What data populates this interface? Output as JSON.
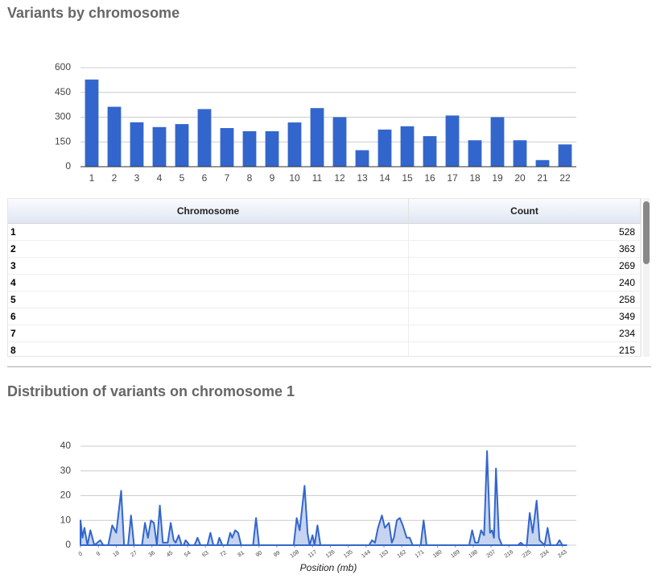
{
  "chart_data": [
    {
      "type": "bar",
      "title": "Variants by chromosome",
      "categories": [
        "1",
        "2",
        "3",
        "4",
        "5",
        "6",
        "7",
        "8",
        "9",
        "10",
        "11",
        "12",
        "13",
        "14",
        "15",
        "16",
        "17",
        "18",
        "19",
        "20",
        "21",
        "22"
      ],
      "values": [
        528,
        363,
        269,
        240,
        258,
        349,
        234,
        215,
        215,
        268,
        355,
        300,
        100,
        225,
        245,
        185,
        310,
        160,
        300,
        160,
        40,
        135
      ],
      "color": "#3366cc",
      "ylim": [
        0,
        600
      ],
      "yticks": [
        0,
        150,
        300,
        450,
        600
      ],
      "grid": true
    },
    {
      "type": "area",
      "title": "Distribution of variants on chromosome 1",
      "x_label": "Position (mb)",
      "x": [
        0,
        1,
        2,
        3.5,
        5,
        7,
        10,
        11.5,
        14,
        16,
        18,
        20.5,
        22,
        24,
        25.5,
        27,
        31,
        32.5,
        34,
        35.5,
        37,
        38.5,
        40,
        41.5,
        44,
        45.5,
        47,
        48,
        49.5,
        51,
        52,
        53,
        55,
        57.5,
        59,
        60.5,
        64,
        65.5,
        67,
        69,
        70,
        71.5,
        74,
        75.5,
        76.5,
        78,
        79.5,
        81,
        87,
        88.5,
        90,
        107.5,
        109,
        110.5,
        113,
        114.5,
        115.5,
        117,
        118,
        119.5,
        121,
        145.5,
        147,
        148.5,
        150,
        152,
        153.5,
        155.5,
        157,
        158,
        159.5,
        161,
        162.5,
        164.5,
        166,
        167.5,
        171.5,
        173,
        174.5,
        196,
        197.5,
        199,
        200.5,
        202,
        203.5,
        205,
        206.5,
        207.5,
        208.5,
        209.5,
        211,
        212.5,
        220.5,
        222,
        223.5,
        225,
        226.5,
        228,
        230,
        231.5,
        234,
        235.5,
        237,
        240,
        241.5,
        243,
        245
      ],
      "values": [
        10,
        3,
        7,
        0,
        6,
        0,
        2,
        0,
        0,
        8,
        5,
        22,
        0,
        0,
        12,
        0,
        0,
        9,
        3,
        10,
        9,
        0,
        16,
        1,
        1,
        9,
        2,
        1,
        4,
        0,
        0,
        2,
        0,
        0,
        3,
        0,
        0,
        5,
        0,
        0,
        3,
        0,
        0,
        5,
        3,
        6,
        5,
        0,
        0,
        11,
        0,
        0,
        11,
        6,
        24,
        5,
        0,
        4,
        0,
        8,
        0,
        0,
        2,
        1,
        7,
        12,
        7,
        9,
        1,
        3,
        10,
        11,
        8,
        3,
        3,
        0,
        0,
        10,
        0,
        0,
        6,
        1,
        1,
        6,
        4,
        38,
        5,
        6,
        3,
        31,
        3,
        0,
        0,
        1,
        0,
        0,
        13,
        5,
        18,
        2,
        0,
        7,
        0,
        0,
        2,
        0,
        0
      ],
      "color": "#3366cc",
      "fill": "#c6d4f1",
      "xlim": [
        0,
        250
      ],
      "xticks": [
        0,
        9,
        18,
        27,
        36,
        45,
        54,
        63,
        72,
        81,
        90,
        99,
        108,
        117,
        126,
        135,
        144,
        153,
        162,
        171,
        180,
        189,
        198,
        207,
        216,
        225,
        234,
        243
      ],
      "ylim": [
        0,
        40
      ],
      "yticks": [
        0,
        10,
        20,
        30,
        40
      ],
      "grid": true
    }
  ],
  "table": {
    "columns": [
      "Chromosome",
      "Count"
    ],
    "rows": [
      [
        1,
        528
      ],
      [
        2,
        363
      ],
      [
        3,
        269
      ],
      [
        4,
        240
      ],
      [
        5,
        258
      ],
      [
        6,
        349
      ],
      [
        7,
        234
      ],
      [
        8,
        215
      ]
    ]
  }
}
